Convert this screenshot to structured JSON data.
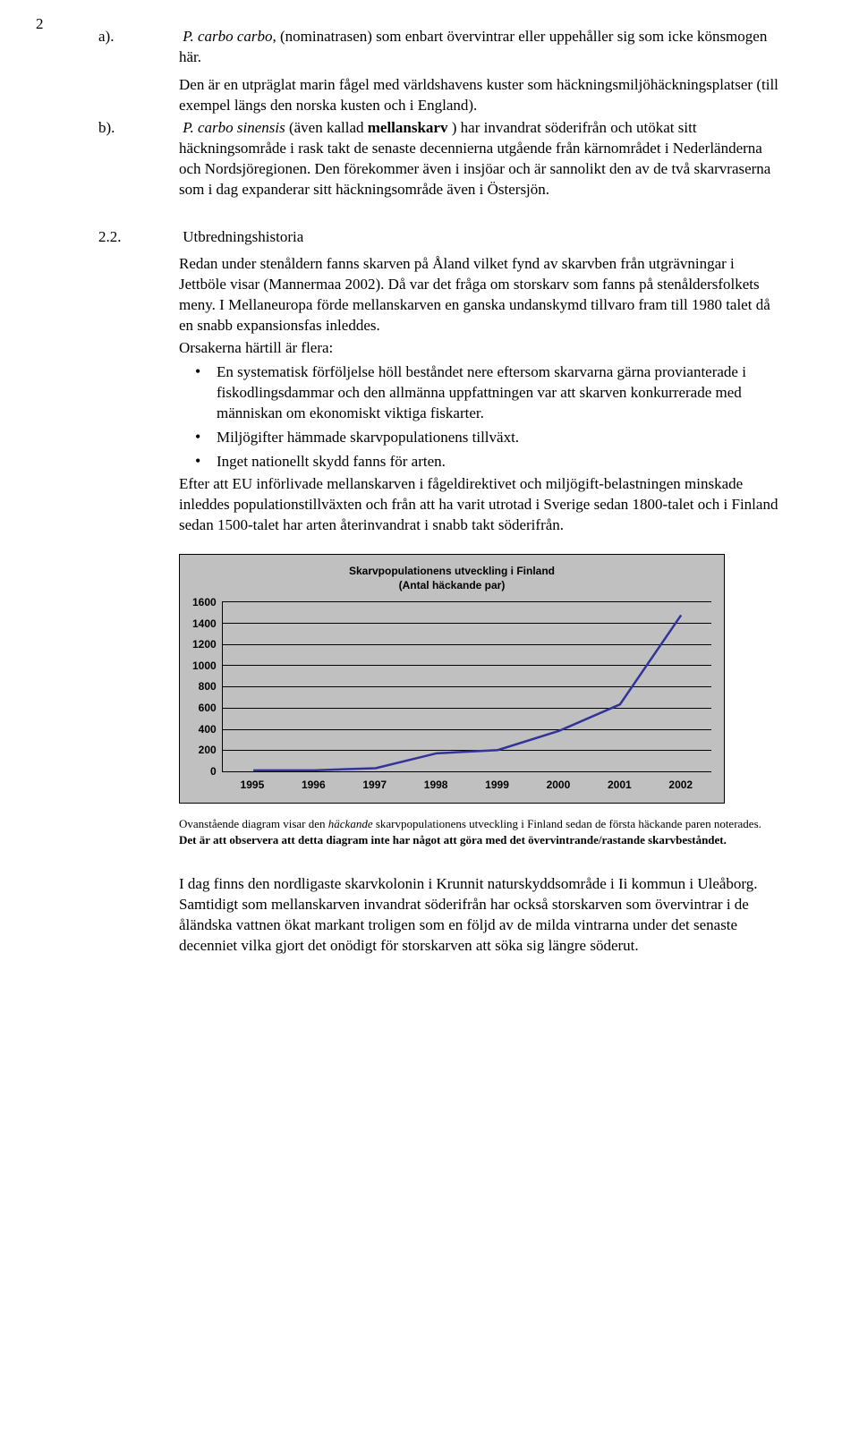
{
  "page_number": "2",
  "section_a": {
    "label": "a). ",
    "text_prefix": "P. carbo carbo",
    "text": ", (nominatrasen) som enbart övervintrar eller uppehåller sig som icke könsmogen här.",
    "text2": "Den är en utpräglat marin fågel med världshavens kuster som häckningsmiljöhäckningsplatser (till exempel längs den norska kusten och i England)."
  },
  "section_b": {
    "label": "b). ",
    "text_prefix": "P. carbo sinensis",
    "bold_word": "mellanskarv",
    "text1a": " (även kallad ",
    "text1b": " ) har invandrat söderifrån och utökat sitt häckningsområde i rask takt de senaste decennierna utgående från kärnområdet i Nederländerna och Nordsjöregionen. Den förekommer även i insjöar och är sannolikt den av de två skarvraserna som i dag expanderar sitt häckningsområde även i Östersjön."
  },
  "section_22": {
    "label": "2.2.",
    "heading": "Utbredningshistoria",
    "para1": "Redan under stenåldern fanns skarven på Åland vilket fynd av skarvben från utgrävningar i Jettböle visar (Mannermaa 2002). Då var det fråga om storskarv som fanns på stenåldersfolkets meny. I Mellaneuropa förde mellanskarven en ganska undanskymd tillvaro fram till 1980 talet då en snabb expansionsfas inleddes.",
    "para2": "Orsakerna härtill är flera:",
    "bullets": [
      "En systematisk förföljelse höll beståndet nere eftersom skarvarna gärna provianterade i fiskodlingsdammar och den allmänna uppfattningen var att skarven konkurrerade med människan om ekonomiskt viktiga fiskarter.",
      "Miljögifter hämmade skarvpopulationens tillväxt.",
      "Inget nationellt skydd fanns för arten."
    ],
    "para3": "Efter att EU införlivade mellanskarven i fågeldirektivet och miljögift-belastningen minskade inleddes populationstillväxten och från att ha varit utrotad i Sverige sedan 1800-talet och i Finland sedan 1500-talet har arten återinvandrat i snabb takt söderifrån."
  },
  "chart": {
    "type": "line",
    "title_line1": "Skarvpopulationens utveckling i Finland",
    "title_line2": "(Antal häckande par)",
    "years": [
      "1995",
      "1996",
      "1997",
      "1998",
      "1999",
      "2000",
      "2001",
      "2002"
    ],
    "values": [
      10,
      10,
      30,
      170,
      200,
      380,
      630,
      1470
    ],
    "y_ticks": [
      "1600",
      "1400",
      "1200",
      "1000",
      "800",
      "600",
      "400",
      "200",
      "0"
    ],
    "ylim": [
      0,
      1600
    ],
    "line_color": "#333399",
    "line_width": 2.5,
    "background_color": "#c0c0c0",
    "grid_color": "#000000",
    "axis_color": "#000000",
    "label_fontsize": 12,
    "title_fontsize": 12
  },
  "caption": {
    "plain1": "Ovanstående diagram visar den ",
    "italic": "häckande",
    "plain2": " skarvpopulationens utveckling i Finland sedan de första häckande paren noterades. ",
    "bold": "Det är att observera att detta diagram inte har något att göra med det övervintrande/rastande skarvbeståndet."
  },
  "closing_para": "I dag finns den nordligaste skarvkolonin i Krunnit naturskyddsområde i Ii kommun i Uleåborg. Samtidigt som mellanskarven invandrat söderifrån har också storskarven som övervintrar i de åländska vattnen ökat markant troligen som en följd av de milda vintrarna under det senaste decenniet vilka gjort det onödigt för storskarven att söka sig längre söderut."
}
